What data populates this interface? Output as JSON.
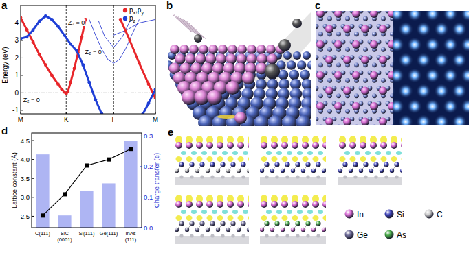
{
  "panel_labels": [
    "a",
    "b",
    "c",
    "d",
    "e"
  ],
  "chart_data": [
    {
      "type": "line",
      "ylabel": "Energy (eV)",
      "xlim": [
        0,
        216
      ],
      "xticks": [
        {
          "value": 0,
          "label": "M"
        },
        {
          "value": 73,
          "label": "K"
        },
        {
          "value": 149,
          "label": "Γ"
        },
        {
          "value": 216,
          "label": "M"
        }
      ],
      "ylim": [
        -1.2,
        5.0
      ],
      "yticks": [
        -1,
        0,
        1,
        2,
        3,
        4
      ],
      "hline": 0,
      "legend": "top-right",
      "annotations": [
        {
          "text": "Z₂ = 0",
          "x": 76,
          "y": 3.9
        },
        {
          "text": "Z₂ = 0",
          "x": 103,
          "y": 2.2
        },
        {
          "text": "Z₂ = 0",
          "x": 4,
          "y": -0.55
        }
      ],
      "series": [
        {
          "name": "px,py",
          "color": "#e8262a",
          "marker": "circle",
          "line_style": "solid",
          "x": [
            0,
            10,
            20,
            30,
            40,
            50,
            60,
            66,
            70,
            73,
            76,
            80,
            86,
            92,
            98,
            104,
            null,
            160,
            175,
            190,
            205,
            216
          ],
          "values": [
            4.3,
            3.6,
            2.9,
            2.2,
            1.6,
            1.0,
            0.5,
            0.2,
            0.05,
            -0.05,
            0.1,
            0.6,
            1.4,
            2.3,
            3.2,
            4.2,
            null,
            4.2,
            3.0,
            1.7,
            0.5,
            -0.3
          ]
        },
        {
          "name": "pz",
          "color": "#1f3fd6",
          "marker": "circle",
          "line_style": "solid",
          "x": [
            0,
            10,
            20,
            30,
            40,
            50,
            60,
            70,
            80,
            90,
            100,
            110,
            120,
            130,
            null,
            196,
            205,
            216
          ],
          "values": [
            3.1,
            3.2,
            3.6,
            4.1,
            4.4,
            4.2,
            3.8,
            3.3,
            2.8,
            2.4,
            1.6,
            0.6,
            -0.4,
            -1.2,
            null,
            -1.2,
            -0.6,
            0.2
          ]
        },
        {
          "color": "#2b3bd0",
          "marker": "none",
          "line_style": "solid",
          "x": [
            110,
            120,
            130,
            140,
            149,
            158,
            168,
            178,
            190
          ],
          "values": [
            4.2,
            3.3,
            2.5,
            1.9,
            1.7,
            1.9,
            2.5,
            3.3,
            4.2
          ]
        },
        {
          "color": "#2b3bd0",
          "marker": "none",
          "line_style": "solid",
          "x": [
            125,
            135,
            149,
            163,
            175
          ],
          "values": [
            4.1,
            3.2,
            2.6,
            3.2,
            4.1
          ]
        },
        {
          "color": "#2b3bd0",
          "marker": "none",
          "line_style": "solid",
          "x": [
            149,
            170,
            190,
            216
          ],
          "values": [
            3.3,
            3.6,
            4.0,
            4.2
          ]
        }
      ]
    },
    {
      "type": "bar",
      "ylabel": "Lattice constant (Å)",
      "y2label": "Charge transfer (e)",
      "categories": [
        "C(111)",
        "SiC(0001)",
        "Si(111)",
        "Ge(111)",
        "InAs(111)"
      ],
      "ylim": [
        2.2,
        4.7
      ],
      "yticks": [
        2.5,
        {
          "value": 3,
          "label": "3.0"
        },
        3.5,
        {
          "value": 4,
          "label": "4.0"
        },
        4.5
      ],
      "y2lim": [
        0,
        0.31
      ],
      "y2ticks": [
        {
          "value": 0,
          "label": "0.0"
        },
        0.1,
        0.2,
        0.3
      ],
      "series": [
        {
          "type": "bar",
          "axis": "y2",
          "color": "#aeb5f3",
          "values": [
            0.24,
            0.04,
            0.12,
            0.145,
            0.285
          ]
        },
        {
          "type": "line",
          "color": "#000000",
          "marker": "square",
          "line_style": "solid",
          "values": [
            2.52,
            3.08,
            3.84,
            4.0,
            4.28
          ]
        }
      ]
    }
  ],
  "panel_e": {
    "atoms": [
      {
        "label": "In",
        "color": "#d86bd4"
      },
      {
        "label": "Si",
        "color": "#3a3fb8"
      },
      {
        "label": "C",
        "color": "#c9c9c9"
      },
      {
        "label": "Ge",
        "color": "#6e6c98"
      },
      {
        "label": "As",
        "color": "#45a845"
      }
    ]
  }
}
